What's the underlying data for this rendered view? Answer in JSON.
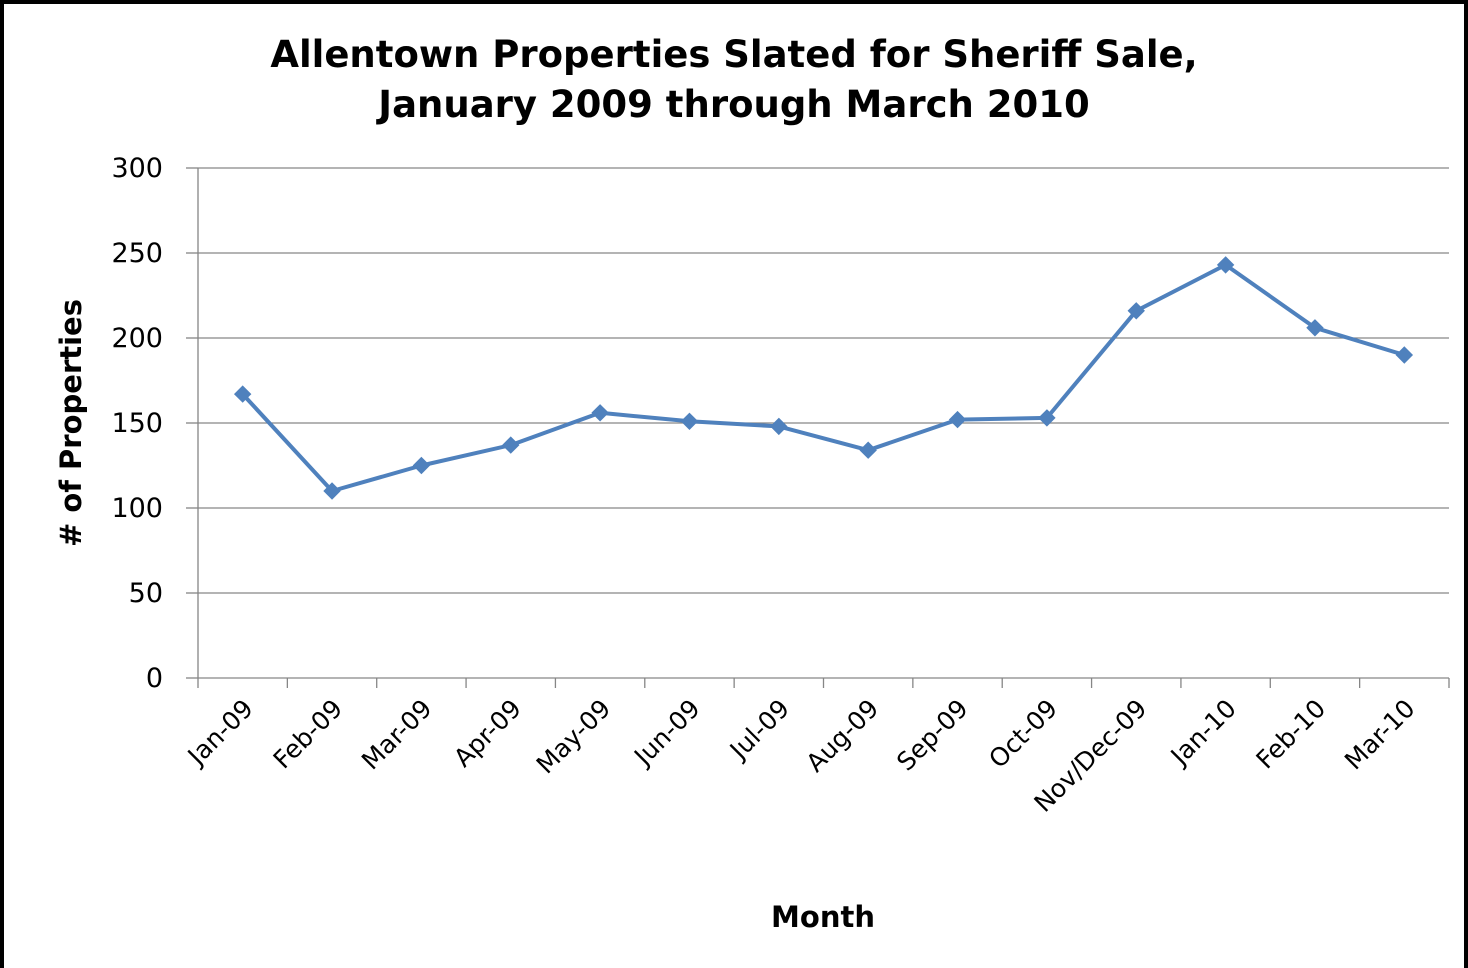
{
  "chart_data": {
    "type": "line",
    "title_line1": "Allentown Properties Slated for Sheriff Sale,",
    "title_line2": "January 2009 through March 2010",
    "xlabel": "Month",
    "ylabel": "# of Properties",
    "categories": [
      "Jan-09",
      "Feb-09",
      "Mar-09",
      "Apr-09",
      "May-09",
      "Jun-09",
      "Jul-09",
      "Aug-09",
      "Sep-09",
      "Oct-09",
      "Nov/Dec-09",
      "Jan-10",
      "Feb-10",
      "Mar-10"
    ],
    "values": [
      167,
      110,
      125,
      137,
      156,
      151,
      148,
      134,
      152,
      153,
      216,
      243,
      206,
      190
    ],
    "ylim": [
      0,
      300
    ],
    "yticks": [
      0,
      50,
      100,
      150,
      200,
      250,
      300
    ],
    "grid": true,
    "legend": "none",
    "series_color": "#4f81bd"
  }
}
